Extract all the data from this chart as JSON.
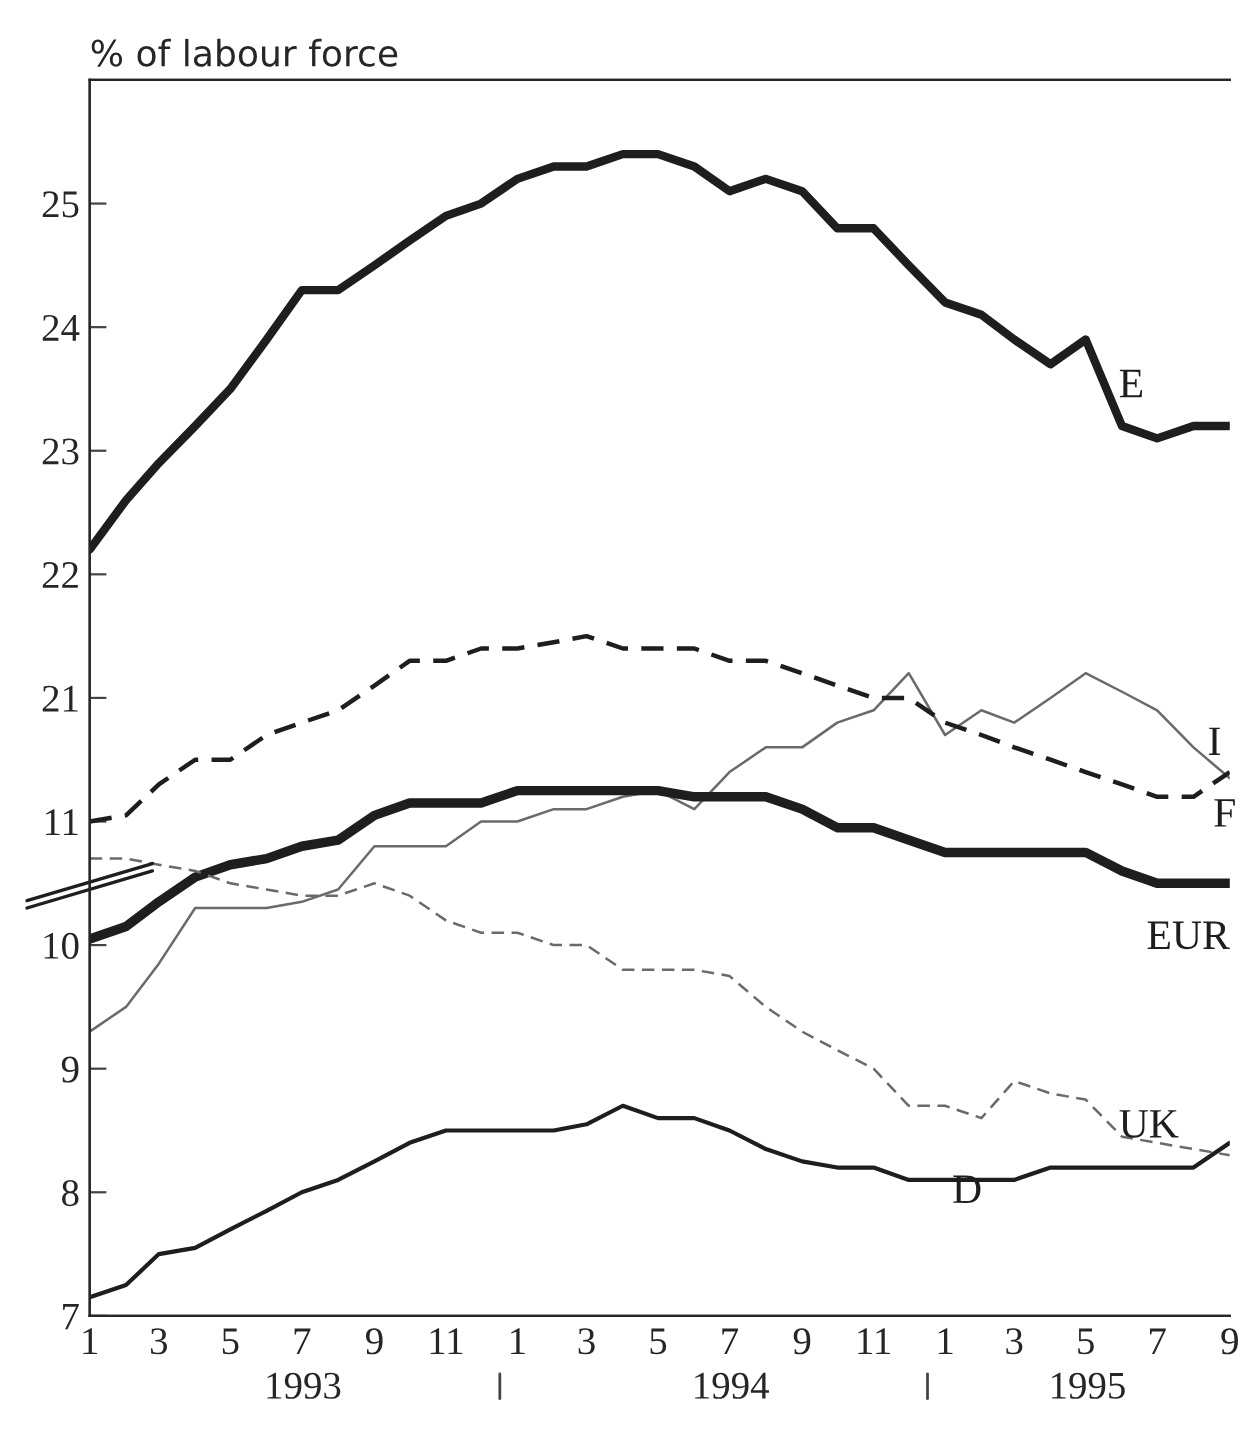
{
  "chart_data": {
    "type": "line",
    "ylabel": "% of labour force",
    "x": [
      "1993-01",
      "1993-02",
      "1993-03",
      "1993-04",
      "1993-05",
      "1993-06",
      "1993-07",
      "1993-08",
      "1993-09",
      "1993-10",
      "1993-11",
      "1993-12",
      "1994-01",
      "1994-02",
      "1994-03",
      "1994-04",
      "1994-05",
      "1994-06",
      "1994-07",
      "1994-08",
      "1994-09",
      "1994-10",
      "1994-11",
      "1994-12",
      "1995-01",
      "1995-02",
      "1995-03",
      "1995-04",
      "1995-05",
      "1995-06",
      "1995-07",
      "1995-08",
      "1995-09"
    ],
    "series": [
      {
        "name": "E",
        "color": "#1e1e1e",
        "axis": "y2",
        "line_style": "solid",
        "values": [
          22.2,
          22.6,
          22.9,
          23.2,
          23.5,
          23.9,
          24.3,
          24.3,
          24.5,
          24.7,
          24.9,
          25.0,
          25.2,
          25.3,
          25.3,
          25.4,
          25.4,
          25.3,
          25.1,
          25.2,
          25.1,
          24.8,
          24.8,
          24.5,
          24.2,
          24.1,
          23.9,
          23.7,
          23.9,
          23.2,
          23.1,
          23.2,
          23.2
        ]
      },
      {
        "name": "I",
        "color": "#6a6a6a",
        "line_style": "solid",
        "values": [
          9.3,
          9.5,
          9.85,
          10.3,
          10.3,
          10.3,
          10.35,
          10.45,
          10.8,
          10.8,
          10.8,
          11.0,
          11.0,
          11.1,
          11.1,
          11.2,
          11.25,
          11.1,
          11.4,
          11.6,
          11.6,
          11.8,
          11.9,
          12.2,
          11.7,
          11.9,
          11.8,
          12.0,
          12.2,
          12.05,
          11.9,
          11.6,
          11.35
        ]
      },
      {
        "name": "F",
        "color": "#1e1e1e",
        "line_style": "dashed",
        "values": [
          11.0,
          11.05,
          11.3,
          11.5,
          11.5,
          11.7,
          11.8,
          11.9,
          12.1,
          12.3,
          12.3,
          12.4,
          12.4,
          12.45,
          12.5,
          12.4,
          12.4,
          12.4,
          12.3,
          12.3,
          12.2,
          12.1,
          12.0,
          12.0,
          11.8,
          11.7,
          11.6,
          11.5,
          11.4,
          11.3,
          11.2,
          11.2,
          11.4
        ]
      },
      {
        "name": "EUR",
        "color": "#1e1e1e",
        "line_style": "solid",
        "values": [
          10.05,
          10.15,
          10.35,
          10.55,
          10.65,
          10.7,
          10.8,
          10.85,
          11.05,
          11.15,
          11.15,
          11.15,
          11.25,
          11.25,
          11.25,
          11.25,
          11.25,
          11.2,
          11.2,
          11.2,
          11.1,
          10.95,
          10.95,
          10.85,
          10.75,
          10.75,
          10.75,
          10.75,
          10.75,
          10.6,
          10.5,
          10.5,
          10.5
        ]
      },
      {
        "name": "UK",
        "color": "#6a6a6a",
        "line_style": "dashed",
        "values": [
          10.7,
          10.7,
          10.65,
          10.6,
          10.5,
          10.45,
          10.4,
          10.4,
          10.5,
          10.4,
          10.2,
          10.1,
          10.1,
          10.0,
          10.0,
          9.8,
          9.8,
          9.8,
          9.75,
          9.5,
          9.3,
          9.15,
          9.0,
          8.7,
          8.7,
          8.6,
          8.9,
          8.8,
          8.75,
          8.45,
          8.4,
          8.35,
          8.3
        ]
      },
      {
        "name": "D",
        "color": "#1e1e1e",
        "line_style": "solid",
        "values": [
          7.15,
          7.25,
          7.5,
          7.55,
          7.7,
          7.85,
          8.0,
          8.1,
          8.25,
          8.4,
          8.5,
          8.5,
          8.5,
          8.5,
          8.55,
          8.7,
          8.6,
          8.6,
          8.5,
          8.35,
          8.25,
          8.2,
          8.2,
          8.1,
          8.1,
          8.1,
          8.1,
          8.2,
          8.2,
          8.2,
          8.2,
          8.2,
          8.4
        ]
      }
    ],
    "xlim": [
      "1993-01",
      "1995-09"
    ],
    "xticks": [
      {
        "value": "1993-01",
        "label": "1"
      },
      {
        "value": "1993-03",
        "label": "3"
      },
      {
        "value": "1993-05",
        "label": "5"
      },
      {
        "value": "1993-07",
        "label": "7"
      },
      {
        "value": "1993-09",
        "label": "9"
      },
      {
        "value": "1993-11",
        "label": "11"
      },
      {
        "value": "1994-01",
        "label": "1"
      },
      {
        "value": "1994-03",
        "label": "3"
      },
      {
        "value": "1994-05",
        "label": "5"
      },
      {
        "value": "1994-07",
        "label": "7"
      },
      {
        "value": "1994-09",
        "label": "9"
      },
      {
        "value": "1994-11",
        "label": "11"
      },
      {
        "value": "1995-01",
        "label": "1"
      },
      {
        "value": "1995-03",
        "label": "3"
      },
      {
        "value": "1995-05",
        "label": "5"
      },
      {
        "value": "1995-07",
        "label": "7"
      },
      {
        "value": "1995-09",
        "label": "9"
      }
    ],
    "ylim": [
      7,
      17
    ],
    "yticks": [
      7,
      8,
      9,
      10,
      11
    ],
    "y2lim": [
      16,
      26
    ],
    "y2ticks": [
      21,
      22,
      23,
      24,
      25
    ],
    "annotations": [
      "1993",
      "1994",
      "1995"
    ],
    "grid": false,
    "legend": false
  }
}
